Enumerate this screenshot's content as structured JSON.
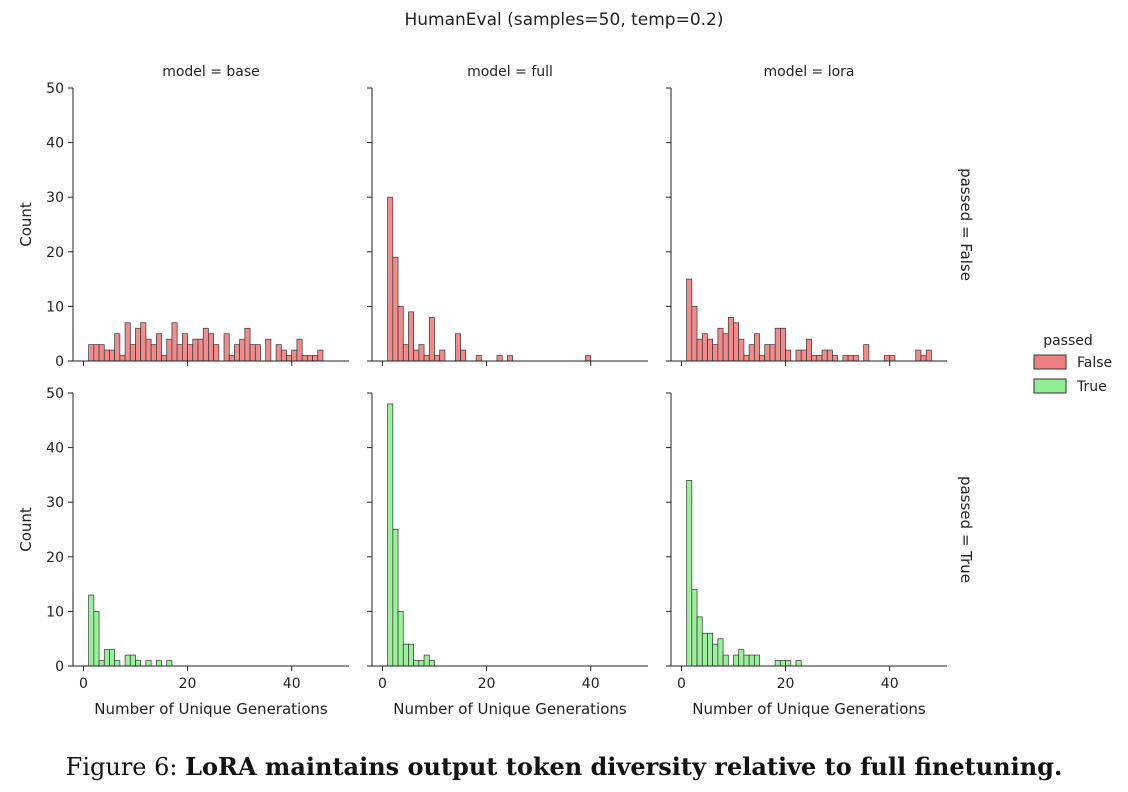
{
  "chart_data": {
    "type": "bar",
    "title": "HumanEval (samples=50, temp=0.2)",
    "col_labels": [
      "model = base",
      "model = full",
      "model = lora"
    ],
    "row_labels": [
      "passed = False",
      "passed = True"
    ],
    "xlabel": "Number of Unique Generations",
    "ylabel": "Count",
    "xlim": [
      -2,
      51
    ],
    "ylim": [
      0,
      50
    ],
    "xticks": [
      0,
      20,
      40
    ],
    "yticks": [
      0,
      10,
      20,
      30,
      40,
      50
    ],
    "bin_width": 1,
    "legend": {
      "title": "passed",
      "placement": "right",
      "entries": [
        {
          "label": "False",
          "color": "#f08080"
        },
        {
          "label": "True",
          "color": "#90ee90"
        }
      ]
    },
    "series_colors": {
      "False": "#f08080",
      "True": "#90ee90"
    },
    "panels": [
      {
        "model": "base",
        "passed": "False",
        "bins_start": 1,
        "values": [
          3,
          3,
          3,
          2,
          2,
          5,
          1,
          7,
          3,
          6,
          7,
          4,
          3,
          5,
          1,
          4,
          7,
          3,
          5,
          3,
          4,
          4,
          6,
          5,
          3,
          0,
          5,
          1,
          3,
          4,
          6,
          3,
          3,
          0,
          4,
          0,
          3,
          2,
          1,
          2,
          4,
          1,
          1,
          1,
          2
        ]
      },
      {
        "model": "full",
        "passed": "False",
        "bins_start": 1,
        "values": [
          30,
          19,
          10,
          3,
          9,
          2,
          3,
          1,
          8,
          1,
          2,
          0,
          0,
          5,
          2,
          0,
          0,
          1,
          0,
          0,
          0,
          1,
          0,
          1,
          0,
          0,
          0,
          0,
          0,
          0,
          0,
          0,
          0,
          0,
          0,
          0,
          0,
          0,
          1
        ]
      },
      {
        "model": "lora",
        "passed": "False",
        "bins_start": 1,
        "values": [
          15,
          10,
          4,
          5,
          4,
          3,
          6,
          5,
          8,
          7,
          4,
          1,
          3,
          5,
          1,
          3,
          3,
          6,
          6,
          2,
          0,
          2,
          2,
          4,
          1,
          1,
          2,
          2,
          1,
          0,
          1,
          1,
          1,
          0,
          3,
          0,
          0,
          0,
          1,
          1,
          0,
          0,
          0,
          0,
          2,
          1,
          2
        ]
      },
      {
        "model": "base",
        "passed": "True",
        "bins_start": 1,
        "values": [
          13,
          10,
          1,
          3,
          3,
          1,
          0,
          2,
          2,
          1,
          0,
          1,
          0,
          1,
          0,
          1
        ]
      },
      {
        "model": "full",
        "passed": "True",
        "bins_start": 1,
        "values": [
          48,
          25,
          10,
          4,
          4,
          1,
          1,
          2,
          1
        ]
      },
      {
        "model": "lora",
        "passed": "True",
        "bins_start": 1,
        "values": [
          34,
          14,
          9,
          6,
          6,
          4,
          5,
          2,
          0,
          2,
          3,
          2,
          2,
          2,
          0,
          0,
          0,
          1,
          1,
          1,
          0,
          1
        ]
      }
    ]
  },
  "caption": {
    "prefix": "Figure 6:",
    "bold": "LoRA maintains output token diversity relative to full finetuning."
  }
}
